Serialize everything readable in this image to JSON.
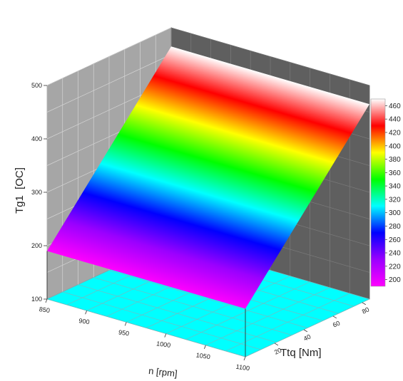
{
  "chart_data": {
    "type": "surface3d",
    "title": "",
    "xlabel": "n [rpm]",
    "ylabel": "Ttq [Nm]",
    "zlabel_main": "Tg1",
    "zlabel_unit": "[OC]",
    "x_ticks": [
      "850",
      "900",
      "950",
      "1000",
      "1050",
      "1100"
    ],
    "y_ticks": [
      "20",
      "40",
      "60",
      "80"
    ],
    "z_ticks": [
      "100",
      "200",
      "300",
      "400",
      "500"
    ],
    "xlim": [
      850,
      1100
    ],
    "ylim": [
      0,
      85
    ],
    "zlim": [
      100,
      500
    ],
    "surface_corners": [
      {
        "n": 850,
        "Ttq": 0,
        "Tg1": 190
      },
      {
        "n": 1100,
        "Ttq": 0,
        "Tg1": 190
      },
      {
        "n": 850,
        "Ttq": 85,
        "Tg1": 465
      },
      {
        "n": 1100,
        "Ttq": 85,
        "Tg1": 465
      }
    ],
    "colorbar": {
      "min": 190,
      "max": 470,
      "ticks": [
        "200",
        "220",
        "240",
        "260",
        "280",
        "300",
        "320",
        "340",
        "360",
        "380",
        "400",
        "420",
        "440",
        "460"
      ],
      "colors": [
        "#ff00ff",
        "#9b00ff",
        "#0000ff",
        "#00ffff",
        "#00ff00",
        "#ffff00",
        "#ff0000",
        "#ffffff"
      ]
    },
    "floor_color": "#00ffff",
    "grid": true
  }
}
